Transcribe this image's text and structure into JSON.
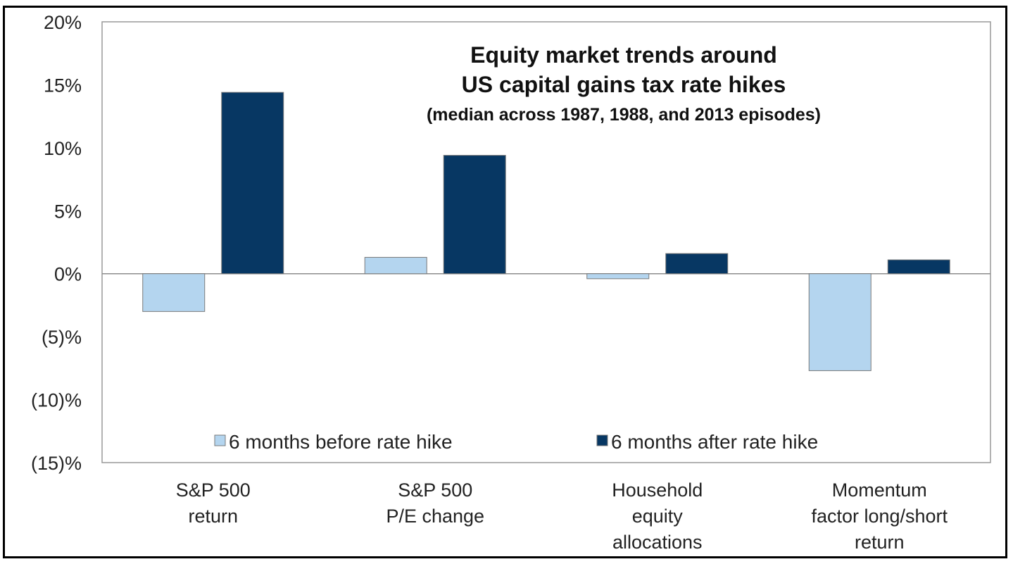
{
  "chart_data": {
    "type": "bar",
    "title": [
      "Equity market trends around",
      "US capital gains tax rate hikes"
    ],
    "subtitle": "(median across 1987, 1988, and 2013 episodes)",
    "categories": [
      [
        "S&P 500",
        "return"
      ],
      [
        "S&P 500",
        "P/E change"
      ],
      [
        "Household",
        "equity",
        "allocations"
      ],
      [
        "Momentum",
        "factor long/short",
        "return"
      ]
    ],
    "series": [
      {
        "name": "6 months before rate hike",
        "color": "#b4d5ef",
        "values": [
          -3.0,
          1.3,
          -0.4,
          -7.7
        ]
      },
      {
        "name": "6 months after rate hike",
        "color": "#073763",
        "values": [
          14.4,
          9.4,
          1.6,
          1.1
        ]
      }
    ],
    "ylim": [
      -15,
      20
    ],
    "yticks": [
      20,
      15,
      10,
      5,
      0,
      -5,
      -10,
      -15
    ],
    "ytick_labels": [
      "20%",
      "15%",
      "10%",
      "5%",
      "0%",
      "(5)%",
      "(10)%",
      "(15)%"
    ],
    "grid": false,
    "legend_position": "bottom-inside"
  }
}
